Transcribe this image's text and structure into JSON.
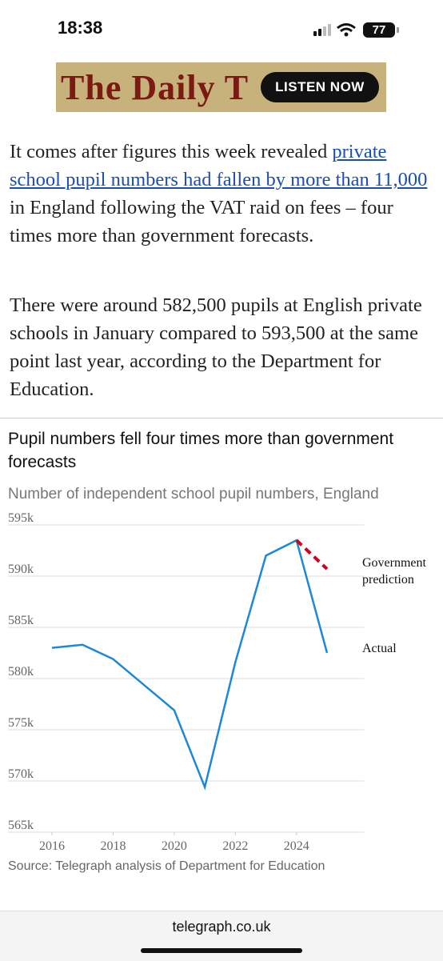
{
  "status_bar": {
    "time": "18:38",
    "battery": "77"
  },
  "ad": {
    "brand": "The Daily T",
    "button": "LISTEN NOW"
  },
  "article": {
    "paragraphs": [
      {
        "text_before": "It comes after figures this week revealed ",
        "link": "private school pupil numbers had fallen by more than 11,000",
        "text_after": " in England following the VAT raid on fees – four times more than government forecasts."
      },
      {
        "text": "There were around 582,500 pupils at English private schools in January compared to 593,500 at the same point last year, according to the Department for Education."
      }
    ]
  },
  "chart_data": {
    "type": "line",
    "title": "Pupil numbers fell four times more than government forecasts",
    "subtitle": "Number of independent school pupil numbers, England",
    "source": "Source: Telegraph analysis of Department for Education",
    "x": [
      2016,
      2017,
      2018,
      2019,
      2020,
      2021,
      2022,
      2023,
      2024,
      2025
    ],
    "series": [
      {
        "name": "Actual",
        "color": "#1e88d8",
        "dashed": false,
        "values": [
          583000,
          583300,
          581900,
          579400,
          576900,
          569400,
          581600,
          592000,
          593500,
          582500
        ]
      },
      {
        "name": "Government prediction",
        "color": "#d0021b",
        "dashed": true,
        "values": [
          null,
          null,
          null,
          null,
          null,
          null,
          null,
          null,
          593500,
          590700
        ]
      }
    ],
    "xlim": [
      2016,
      2025
    ],
    "xticks": [
      2016,
      2018,
      2020,
      2022,
      2024
    ],
    "ylim": [
      565000,
      595000
    ],
    "yticks": [
      {
        "value": 565000,
        "label": "565k"
      },
      {
        "value": 570000,
        "label": "570k"
      },
      {
        "value": 575000,
        "label": "575k"
      },
      {
        "value": 580000,
        "label": "580k"
      },
      {
        "value": 585000,
        "label": "585k"
      },
      {
        "value": 590000,
        "label": "590k"
      },
      {
        "value": 595000,
        "label": "595k"
      }
    ],
    "grid": true
  },
  "footer": {
    "url": "telegraph.co.uk"
  }
}
